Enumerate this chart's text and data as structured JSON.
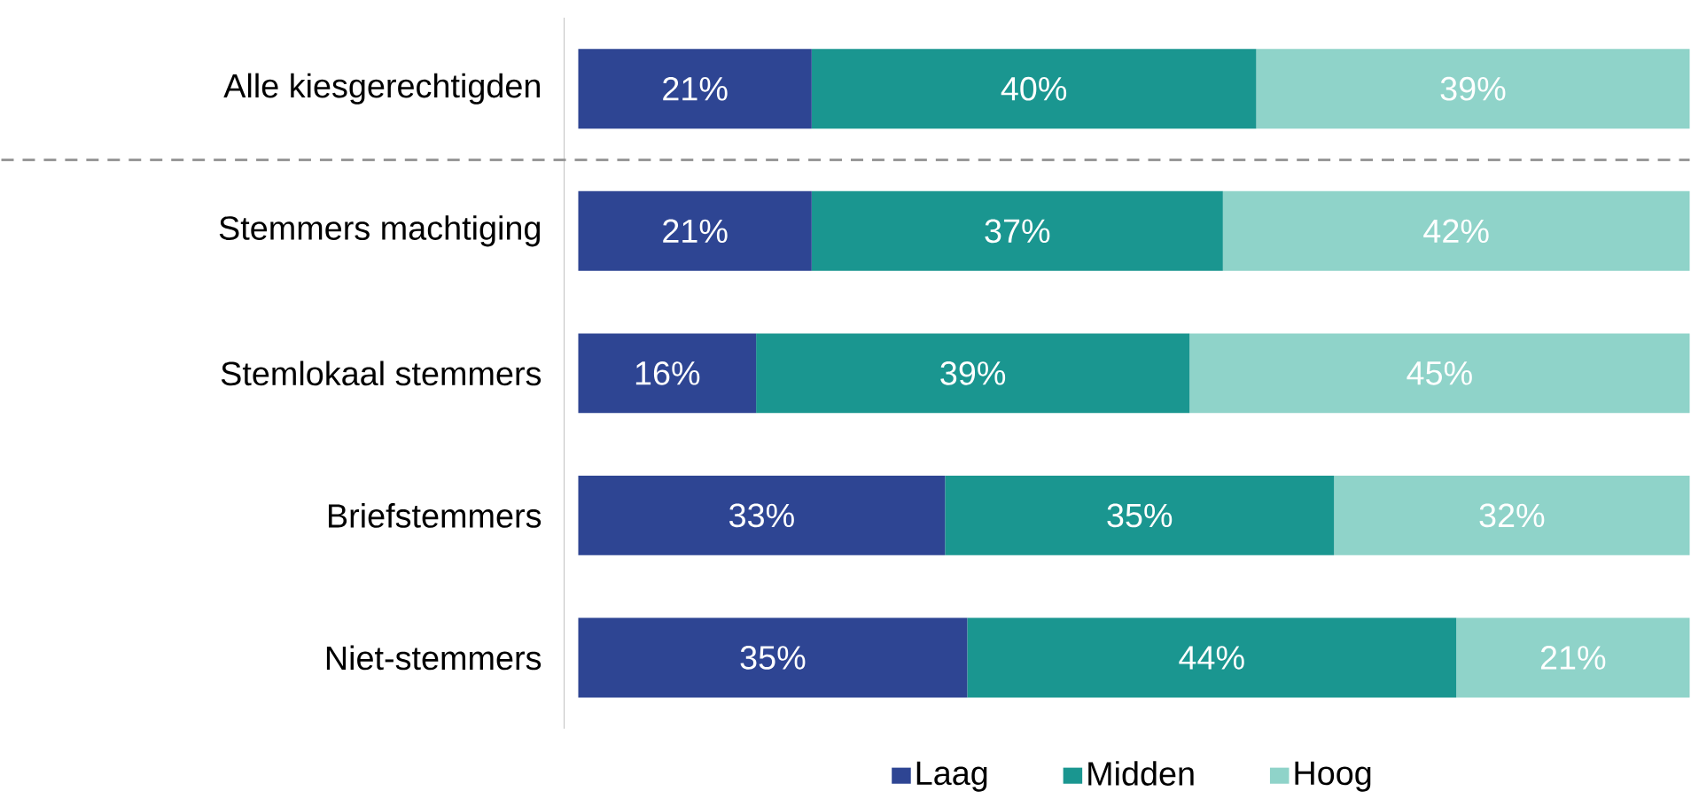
{
  "chart_data": {
    "type": "bar",
    "orientation": "horizontal",
    "stacked": true,
    "categories": [
      "Alle kiesgerechtigden",
      "Stemmers machtiging",
      "Stemlokaal stemmers",
      "Briefstemmers",
      "Niet-stemmers"
    ],
    "series": [
      {
        "name": "Laag",
        "color": "#2e4593",
        "values": [
          21,
          21,
          16,
          33,
          35
        ],
        "value_labels": [
          "21%",
          "21%",
          "16%",
          "33%",
          "35%"
        ]
      },
      {
        "name": "Midden",
        "color": "#1a9690",
        "values": [
          40,
          37,
          39,
          35,
          44
        ],
        "value_labels": [
          "40%",
          "37%",
          "39%",
          "35%",
          "44%"
        ]
      },
      {
        "name": "Hoog",
        "color": "#8fd3c9",
        "values": [
          39,
          42,
          45,
          32,
          21
        ],
        "value_labels": [
          "39%",
          "42%",
          "45%",
          "32%",
          "21%"
        ]
      }
    ],
    "legend": "bottom",
    "tick_labels": "y"
  }
}
